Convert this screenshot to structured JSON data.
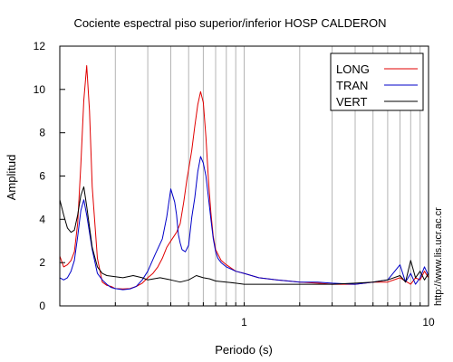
{
  "chart_data": {
    "type": "line",
    "title": "Cociente espectral piso superior/inferior  HOSP CALDERON",
    "xlabel": "Periodo (s)",
    "ylabel": "Amplitud",
    "xscale": "log",
    "xlim": [
      0.1,
      10
    ],
    "ylim": [
      0,
      12
    ],
    "xticks": [
      {
        "value": 1,
        "label": "1"
      },
      {
        "value": 10,
        "label": "10"
      }
    ],
    "yticks": [
      0,
      2,
      4,
      6,
      8,
      10,
      12
    ],
    "grid": "vertical",
    "legend_position": "top-right",
    "side_text": "http://www.lis.ucr.ac.cr",
    "series": [
      {
        "name": "LONG",
        "color": "#e00000",
        "x": [
          0.1,
          0.105,
          0.11,
          0.115,
          0.12,
          0.125,
          0.13,
          0.135,
          0.14,
          0.145,
          0.15,
          0.16,
          0.17,
          0.18,
          0.19,
          0.2,
          0.22,
          0.24,
          0.26,
          0.28,
          0.3,
          0.32,
          0.34,
          0.36,
          0.38,
          0.4,
          0.43,
          0.45,
          0.47,
          0.49,
          0.5,
          0.52,
          0.54,
          0.56,
          0.58,
          0.6,
          0.62,
          0.64,
          0.66,
          0.68,
          0.7,
          0.75,
          0.8,
          0.9,
          1.0,
          1.2,
          1.5,
          2.0,
          2.5,
          3.0,
          4.0,
          5.0,
          6.0,
          7.0,
          8.0,
          8.5,
          9.0,
          9.5,
          10
        ],
        "y": [
          2.3,
          1.8,
          1.9,
          2.1,
          2.5,
          3.8,
          6.5,
          9.5,
          11.1,
          9.0,
          5.5,
          2.2,
          1.1,
          0.95,
          0.9,
          0.8,
          0.78,
          0.8,
          0.9,
          1.05,
          1.3,
          1.5,
          1.8,
          2.2,
          2.7,
          3.0,
          3.4,
          3.8,
          4.8,
          5.9,
          6.3,
          7.2,
          8.3,
          9.3,
          9.9,
          9.4,
          7.8,
          5.8,
          4.3,
          3.2,
          2.6,
          2.1,
          1.9,
          1.6,
          1.5,
          1.3,
          1.2,
          1.1,
          1.05,
          1.0,
          1.0,
          1.1,
          1.1,
          1.3,
          1.0,
          1.3,
          1.2,
          1.6,
          1.3
        ]
      },
      {
        "name": "TRAN",
        "color": "#0000c8",
        "x": [
          0.1,
          0.105,
          0.11,
          0.115,
          0.12,
          0.125,
          0.13,
          0.135,
          0.14,
          0.15,
          0.16,
          0.17,
          0.18,
          0.19,
          0.2,
          0.22,
          0.24,
          0.26,
          0.28,
          0.3,
          0.33,
          0.36,
          0.38,
          0.4,
          0.42,
          0.43,
          0.44,
          0.45,
          0.46,
          0.48,
          0.5,
          0.52,
          0.54,
          0.56,
          0.58,
          0.6,
          0.62,
          0.64,
          0.66,
          0.68,
          0.7,
          0.72,
          0.75,
          0.8,
          0.9,
          1.0,
          1.2,
          1.5,
          2.0,
          2.5,
          3.0,
          4.0,
          5.0,
          6.0,
          7.0,
          7.5,
          8.0,
          8.5,
          9.0,
          9.5,
          10
        ],
        "y": [
          1.3,
          1.2,
          1.3,
          1.6,
          2.1,
          3.2,
          4.4,
          4.9,
          4.2,
          2.6,
          1.5,
          1.2,
          1.0,
          0.85,
          0.8,
          0.75,
          0.78,
          0.9,
          1.2,
          1.6,
          2.4,
          3.1,
          4.1,
          5.4,
          4.8,
          4.2,
          3.3,
          2.9,
          2.6,
          2.5,
          2.8,
          4.1,
          5.0,
          6.2,
          6.9,
          6.6,
          6.0,
          5.0,
          4.0,
          3.1,
          2.5,
          2.2,
          2.0,
          1.8,
          1.6,
          1.5,
          1.3,
          1.2,
          1.1,
          1.1,
          1.05,
          1.0,
          1.1,
          1.2,
          1.9,
          1.1,
          1.5,
          1.0,
          1.3,
          1.8,
          1.4
        ]
      },
      {
        "name": "VERT",
        "color": "#000000",
        "x": [
          0.1,
          0.105,
          0.11,
          0.115,
          0.12,
          0.125,
          0.13,
          0.135,
          0.14,
          0.15,
          0.16,
          0.17,
          0.18,
          0.2,
          0.22,
          0.25,
          0.28,
          0.3,
          0.35,
          0.4,
          0.45,
          0.5,
          0.55,
          0.6,
          0.65,
          0.7,
          0.8,
          0.9,
          1.0,
          1.2,
          1.5,
          2.0,
          3.0,
          4.0,
          5.0,
          6.0,
          7.0,
          7.5,
          8.0,
          8.5,
          9.0,
          9.5,
          10
        ],
        "y": [
          4.9,
          4.2,
          3.6,
          3.4,
          3.5,
          4.2,
          5.1,
          5.5,
          4.6,
          2.7,
          1.8,
          1.5,
          1.4,
          1.35,
          1.3,
          1.4,
          1.3,
          1.2,
          1.3,
          1.2,
          1.1,
          1.2,
          1.4,
          1.3,
          1.25,
          1.15,
          1.1,
          1.05,
          1.0,
          1.0,
          1.0,
          1.0,
          1.0,
          1.05,
          1.1,
          1.2,
          1.4,
          1.1,
          2.1,
          1.3,
          1.6,
          1.2,
          1.5
        ]
      }
    ]
  }
}
